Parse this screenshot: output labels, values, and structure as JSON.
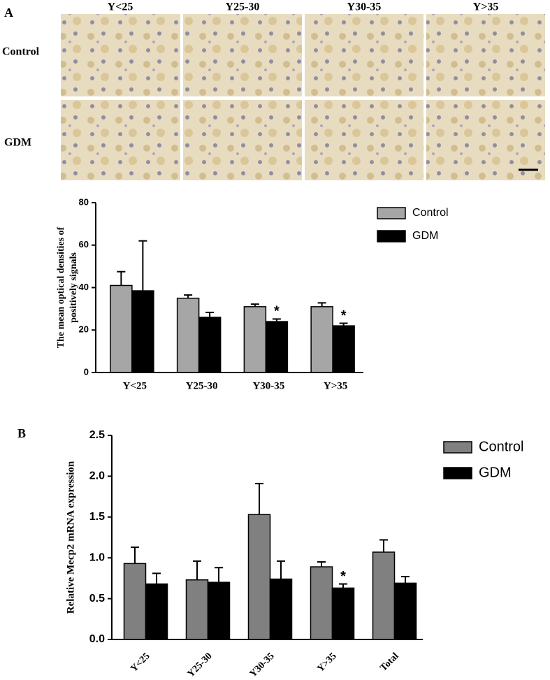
{
  "panel_labels": [
    "A",
    "B"
  ],
  "micrograph": {
    "columns": [
      "Y<25",
      "Y25-30",
      "Y30-35",
      "Y>35"
    ],
    "rows": [
      "Control",
      "GDM"
    ]
  },
  "chart_data": [
    {
      "type": "bar",
      "ylabel": [
        "The mean optical densities of",
        "positively signals"
      ],
      "categories": [
        "Y<25",
        "Y25-30",
        "Y30-35",
        "Y>35"
      ],
      "series": [
        {
          "name": "Control",
          "color": "#a6a6a6",
          "values": [
            41,
            35,
            31,
            31
          ],
          "errors": [
            6.5,
            1.5,
            1.2,
            1.8
          ]
        },
        {
          "name": "GDM",
          "color": "#000000",
          "values": [
            38.5,
            26,
            24,
            22
          ],
          "errors": [
            23.5,
            2.3,
            1.2,
            1.2
          ],
          "labels": [
            null,
            null,
            "*",
            "*"
          ]
        }
      ],
      "ylim": [
        0,
        80
      ],
      "yticks": [
        0,
        20,
        40,
        60,
        80
      ],
      "legend": "upper right"
    },
    {
      "type": "bar",
      "ylabel": "Relative Mecp2 mRNA expression",
      "categories": [
        "Y<25",
        "Y25-30",
        "Y30-35",
        "Y>35",
        "Total"
      ],
      "series": [
        {
          "name": "Control",
          "color": "#808080",
          "values": [
            0.93,
            0.73,
            1.53,
            0.89,
            1.07
          ],
          "errors": [
            0.2,
            0.23,
            0.38,
            0.06,
            0.15
          ]
        },
        {
          "name": "GDM",
          "color": "#000000",
          "values": [
            0.68,
            0.7,
            0.74,
            0.63,
            0.69
          ],
          "errors": [
            0.13,
            0.18,
            0.22,
            0.05,
            0.08
          ],
          "labels": [
            null,
            null,
            null,
            "*",
            null
          ]
        }
      ],
      "ylim": [
        0,
        2.5
      ],
      "yticks": [
        {
          "value": 0,
          "label": "0.0"
        },
        0.5,
        {
          "value": 1,
          "label": "1.0"
        },
        1.5,
        {
          "value": 2,
          "label": "2.0"
        },
        2.5
      ],
      "legend": "upper right"
    }
  ]
}
